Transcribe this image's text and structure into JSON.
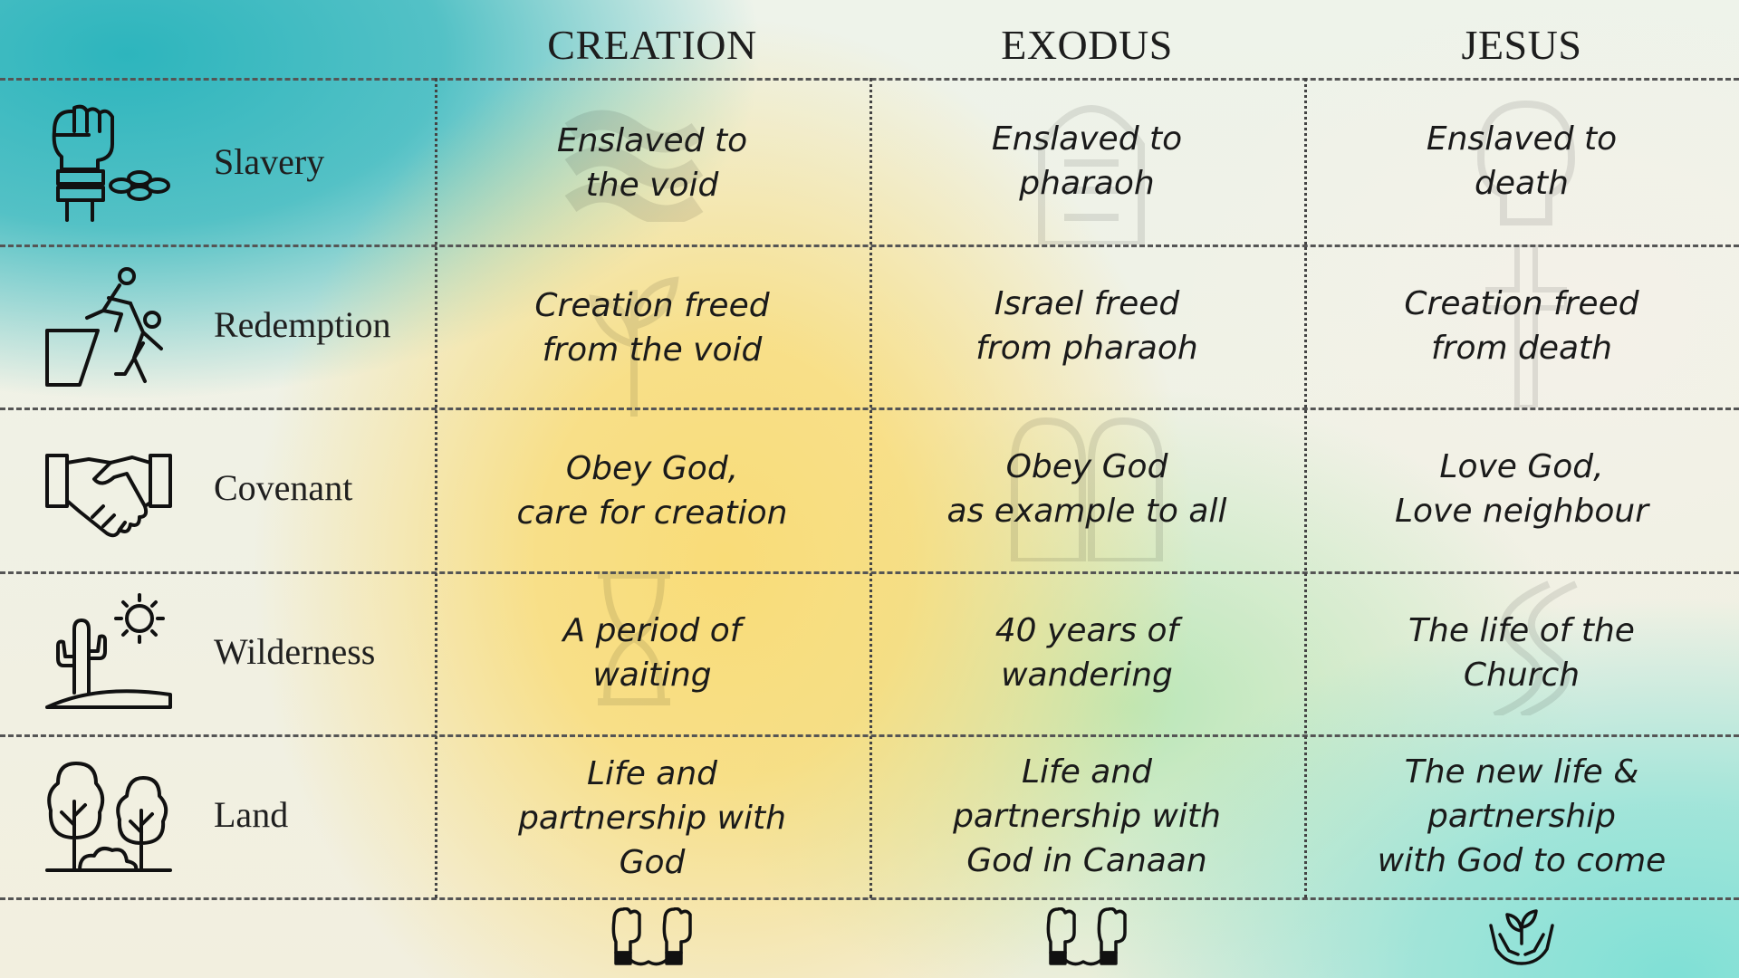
{
  "columns": [
    "CREATION",
    "EXODUS",
    "JESUS"
  ],
  "rows": [
    {
      "label": "Slavery",
      "icon": "raised-fist-chain-icon",
      "cells": [
        "Enslaved to\nthe void",
        "Enslaved to\npharaoh",
        "Enslaved to\ndeath"
      ]
    },
    {
      "label": "Redemption",
      "icon": "climbing-help-icon",
      "cells": [
        "Creation freed\nfrom the void",
        "Israel freed\nfrom pharaoh",
        "Creation freed\nfrom death"
      ]
    },
    {
      "label": "Covenant",
      "icon": "handshake-icon",
      "cells": [
        "Obey God,\ncare for creation",
        "Obey God\nas example to all",
        "Love God,\nLove neighbour"
      ]
    },
    {
      "label": "Wilderness",
      "icon": "cactus-sun-icon",
      "cells": [
        "A period of\nwaiting",
        "40 years of\nwandering",
        "The life of the\nChurch"
      ]
    },
    {
      "label": "Land",
      "icon": "trees-icon",
      "cells": [
        "Life and\npartnership with\nGod",
        "Life and\npartnership with\nGod in Canaan",
        "The new life &\npartnership\nwith God to come"
      ]
    }
  ],
  "footer_icons": [
    "chained-fists-icon",
    "chained-fists-icon",
    "hands-sprout-icon"
  ]
}
